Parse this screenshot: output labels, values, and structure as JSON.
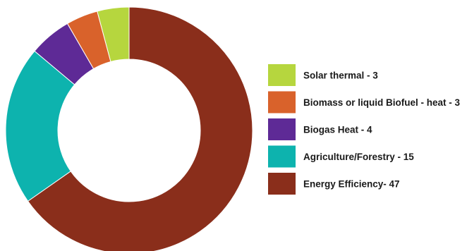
{
  "chart_data": {
    "type": "pie",
    "variant": "donut",
    "title": "",
    "categories": [
      "Solar thermal",
      "Biomass or liquid Biofuel - heat",
      "Biogas Heat",
      "Agriculture/Forestry",
      "Energy Efficiency"
    ],
    "values": [
      3,
      3,
      4,
      15,
      47
    ],
    "legend_labels": [
      "Solar thermal - 3",
      "Biomass or liquid Biofuel - heat - 3",
      "Biogas Heat - 4",
      "Agriculture/Forestry - 15",
      "Energy Efficiency- 47"
    ],
    "colors": [
      "#b6d63e",
      "#d9622b",
      "#5e2a96",
      "#0db3ae",
      "#8a2e1b"
    ],
    "legend_position": "right",
    "start": "top",
    "direction": "counterclockwise"
  }
}
